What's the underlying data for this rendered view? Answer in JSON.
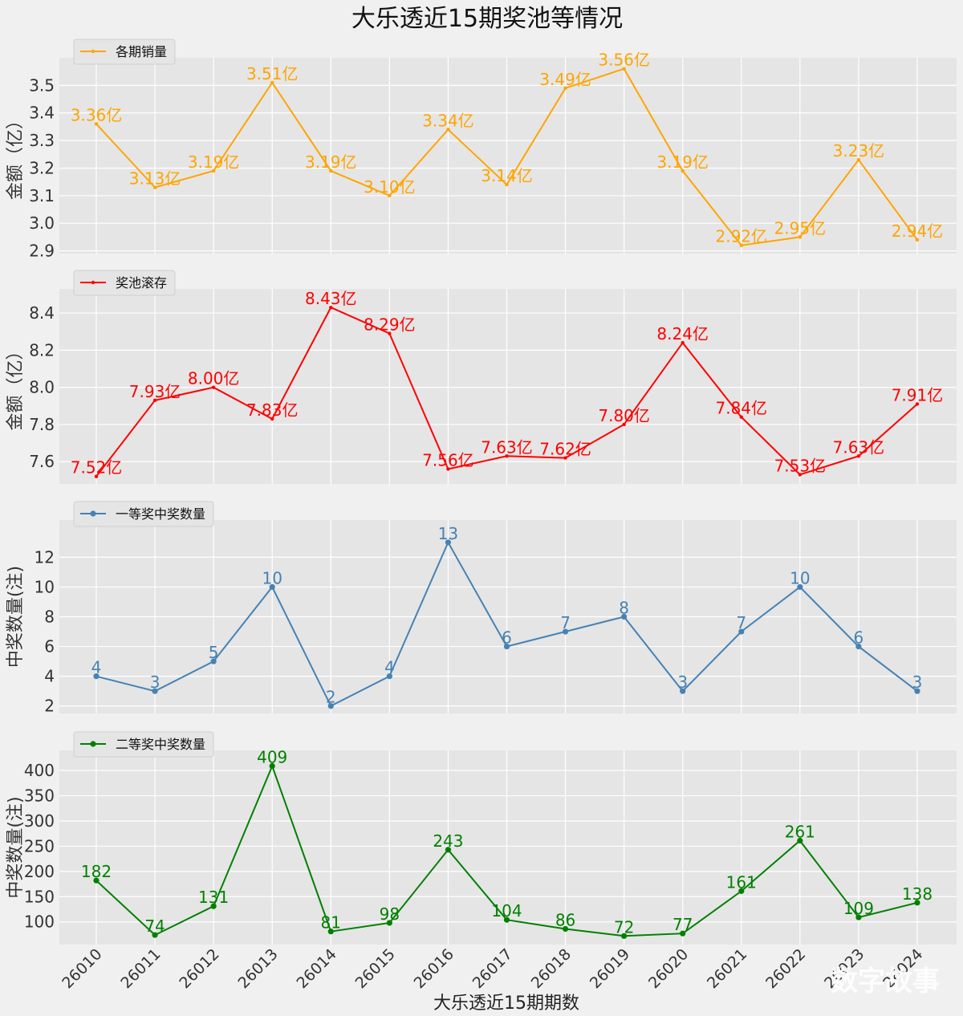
{
  "title": "大乐透近15期奖池等情况",
  "xlabel": "大乐透近15期期数",
  "watermark": "数字故事",
  "chart_data": [
    {
      "type": "line",
      "legend": "各期销量",
      "ylabel": "金额（亿）",
      "color": "#ffa500",
      "marker": "small",
      "categories": [
        "26010",
        "26011",
        "26012",
        "26013",
        "26014",
        "26015",
        "26016",
        "26017",
        "26018",
        "26019",
        "26020",
        "26021",
        "26022",
        "26023",
        "26024"
      ],
      "values": [
        3.36,
        3.13,
        3.19,
        3.51,
        3.19,
        3.1,
        3.34,
        3.14,
        3.49,
        3.56,
        3.19,
        2.92,
        2.95,
        3.23,
        2.94
      ],
      "labels": [
        "3.36亿",
        "3.13亿",
        "3.19亿",
        "3.51亿",
        "3.19亿",
        "3.10亿",
        "3.34亿",
        "3.14亿",
        "3.49亿",
        "3.56亿",
        "3.19亿",
        "2.92亿",
        "2.95亿",
        "3.23亿",
        "2.94亿"
      ],
      "yticks": [
        2.9,
        3.0,
        3.1,
        3.2,
        3.3,
        3.4,
        3.5
      ],
      "ytick_labels": [
        "2.9",
        "3.0",
        "3.1",
        "3.2",
        "3.3",
        "3.4",
        "3.5"
      ],
      "ylim": [
        2.89,
        3.6
      ]
    },
    {
      "type": "line",
      "legend": "奖池滚存",
      "ylabel": "金额（亿）",
      "color": "#ff0000",
      "marker": "small",
      "categories": [
        "26010",
        "26011",
        "26012",
        "26013",
        "26014",
        "26015",
        "26016",
        "26017",
        "26018",
        "26019",
        "26020",
        "26021",
        "26022",
        "26023",
        "26024"
      ],
      "values": [
        7.52,
        7.93,
        8.0,
        7.83,
        8.43,
        8.29,
        7.56,
        7.63,
        7.62,
        7.8,
        8.24,
        7.84,
        7.53,
        7.63,
        7.91
      ],
      "labels": [
        "7.52亿",
        "7.93亿",
        "8.00亿",
        "7.83亿",
        "8.43亿",
        "8.29亿",
        "7.56亿",
        "7.63亿",
        "7.62亿",
        "7.80亿",
        "8.24亿",
        "7.84亿",
        "7.53亿",
        "7.63亿",
        "7.91亿"
      ],
      "yticks": [
        7.6,
        7.8,
        8.0,
        8.2,
        8.4
      ],
      "ytick_labels": [
        "7.6",
        "7.8",
        "8.0",
        "8.2",
        "8.4"
      ],
      "ylim": [
        7.48,
        8.53
      ]
    },
    {
      "type": "line",
      "legend": "一等奖中奖数量",
      "ylabel": "中奖数量(注)",
      "color": "#4682b4",
      "marker": "large",
      "categories": [
        "26010",
        "26011",
        "26012",
        "26013",
        "26014",
        "26015",
        "26016",
        "26017",
        "26018",
        "26019",
        "26020",
        "26021",
        "26022",
        "26023",
        "26024"
      ],
      "values": [
        4,
        3,
        5,
        10,
        2,
        4,
        13,
        6,
        7,
        8,
        3,
        7,
        10,
        6,
        3
      ],
      "labels": [
        "4",
        "3",
        "5",
        "10",
        "2",
        "4",
        "13",
        "6",
        "7",
        "8",
        "3",
        "7",
        "10",
        "6",
        "3"
      ],
      "yticks": [
        2,
        4,
        6,
        8,
        10,
        12
      ],
      "ytick_labels": [
        "2",
        "4",
        "6",
        "8",
        "10",
        "12"
      ],
      "ylim": [
        1.5,
        14.5
      ]
    },
    {
      "type": "line",
      "legend": "二等奖中奖数量",
      "ylabel": "中奖数量(注)",
      "color": "#008000",
      "marker": "large",
      "categories": [
        "26010",
        "26011",
        "26012",
        "26013",
        "26014",
        "26015",
        "26016",
        "26017",
        "26018",
        "26019",
        "26020",
        "26021",
        "26022",
        "26023",
        "26024"
      ],
      "values": [
        182,
        74,
        131,
        409,
        81,
        98,
        243,
        104,
        86,
        72,
        77,
        161,
        261,
        109,
        138
      ],
      "labels": [
        "182",
        "74",
        "131",
        "409",
        "81",
        "98",
        "243",
        "104",
        "86",
        "72",
        "77",
        "161",
        "261",
        "109",
        "138"
      ],
      "yticks": [
        100,
        150,
        200,
        250,
        300,
        350,
        400
      ],
      "ytick_labels": [
        "100",
        "150",
        "200",
        "250",
        "300",
        "350",
        "400"
      ],
      "ylim": [
        55,
        440
      ]
    }
  ]
}
